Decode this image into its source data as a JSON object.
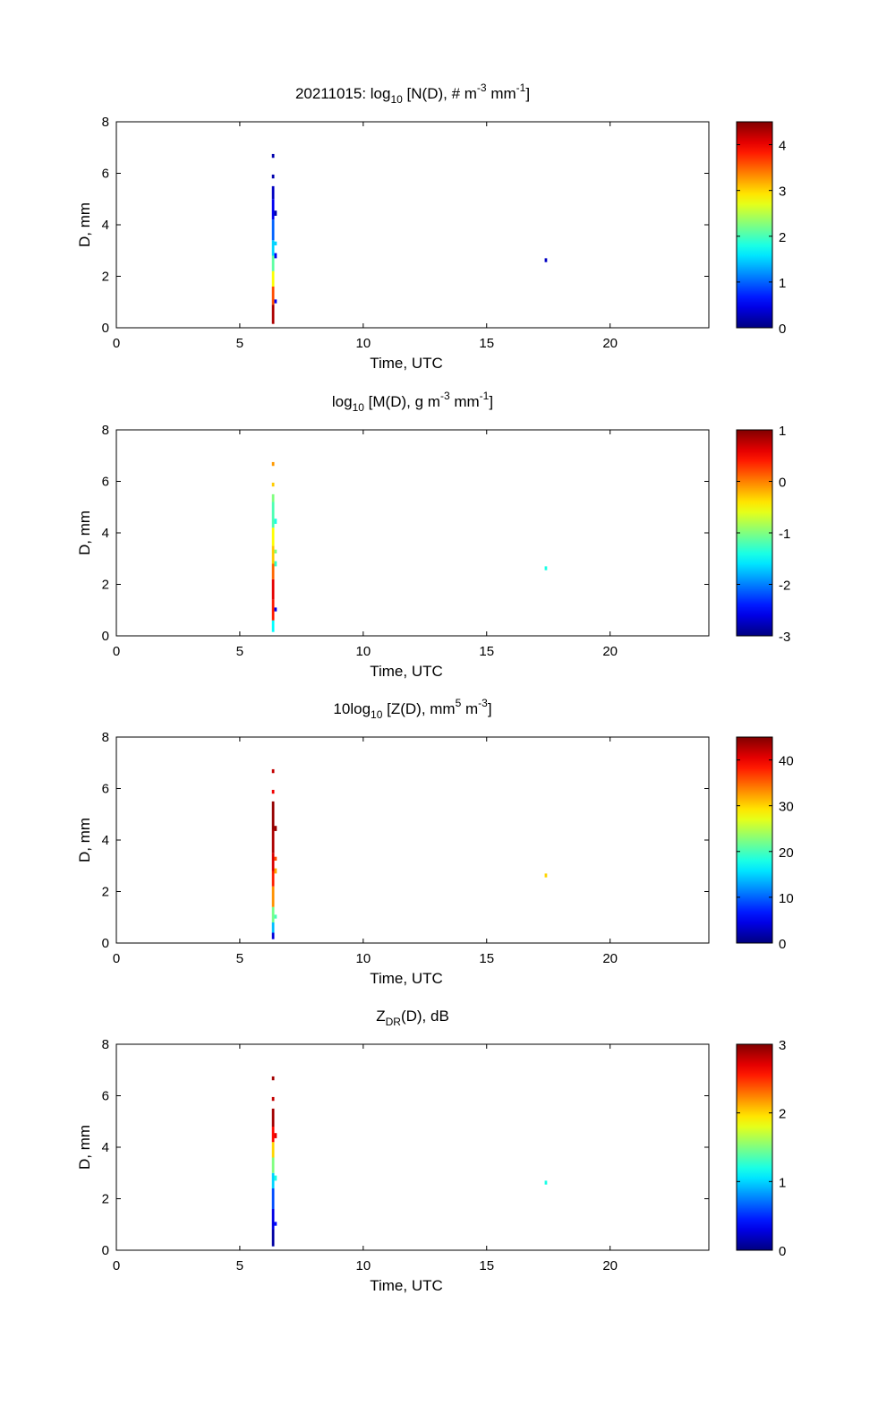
{
  "chart_data": [
    {
      "type": "heatmap",
      "title_parts": [
        "20211015: log",
        "10",
        " [N(D), # m",
        "-3",
        " mm",
        "-1",
        "]"
      ],
      "xlabel": "Time, UTC",
      "ylabel": "D, mm",
      "xlim": [
        0,
        24
      ],
      "ylim": [
        0,
        8
      ],
      "xticks": [
        0,
        5,
        10,
        15,
        20
      ],
      "yticks": [
        0,
        2,
        4,
        6,
        8
      ],
      "grid": false,
      "colorbar": {
        "colormap": "jet",
        "clim": [
          0,
          4.5
        ],
        "ticks": [
          0,
          1,
          2,
          3,
          4
        ]
      },
      "cells": [
        {
          "t": 6.35,
          "d0": 0.15,
          "d1": 0.9,
          "v": 4.3
        },
        {
          "t": 6.35,
          "d0": 0.9,
          "d1": 1.6,
          "v": 3.6
        },
        {
          "t": 6.35,
          "d0": 1.6,
          "d1": 2.2,
          "v": 2.8
        },
        {
          "t": 6.35,
          "d0": 2.2,
          "d1": 2.8,
          "v": 2.1
        },
        {
          "t": 6.35,
          "d0": 2.8,
          "d1": 3.4,
          "v": 1.5
        },
        {
          "t": 6.35,
          "d0": 3.4,
          "d1": 4.2,
          "v": 1.0
        },
        {
          "t": 6.35,
          "d0": 4.2,
          "d1": 5.0,
          "v": 0.5
        },
        {
          "t": 6.35,
          "d0": 5.0,
          "d1": 5.5,
          "v": 0.3
        },
        {
          "t": 6.35,
          "d0": 5.8,
          "d1": 5.95,
          "v": 0.2
        },
        {
          "t": 6.35,
          "d0": 6.6,
          "d1": 6.75,
          "v": 0.2
        },
        {
          "t": 6.45,
          "d0": 0.95,
          "d1": 1.1,
          "v": 0.5
        },
        {
          "t": 6.45,
          "d0": 2.7,
          "d1": 2.9,
          "v": 0.5
        },
        {
          "t": 6.45,
          "d0": 3.2,
          "d1": 3.35,
          "v": 1.5
        },
        {
          "t": 6.45,
          "d0": 4.35,
          "d1": 4.55,
          "v": 0.2
        },
        {
          "t": 17.4,
          "d0": 2.55,
          "d1": 2.7,
          "v": 0.3
        }
      ]
    },
    {
      "type": "heatmap",
      "title_parts": [
        "log",
        "10",
        " [M(D), g m",
        "-3",
        " mm",
        "-1",
        "]"
      ],
      "xlabel": "Time, UTC",
      "ylabel": "D, mm",
      "xlim": [
        0,
        24
      ],
      "ylim": [
        0,
        8
      ],
      "xticks": [
        0,
        5,
        10,
        15,
        20
      ],
      "yticks": [
        0,
        2,
        4,
        6,
        8
      ],
      "grid": false,
      "colorbar": {
        "colormap": "jet",
        "clim": [
          -3,
          1
        ],
        "ticks": [
          1,
          0,
          -1,
          -2,
          -3
        ]
      },
      "cells": [
        {
          "t": 6.35,
          "d0": 0.15,
          "d1": 0.6,
          "v": -1.5
        },
        {
          "t": 6.35,
          "d0": 0.6,
          "d1": 1.4,
          "v": 0.4
        },
        {
          "t": 6.35,
          "d0": 1.4,
          "d1": 2.2,
          "v": 0.6
        },
        {
          "t": 6.35,
          "d0": 2.2,
          "d1": 2.8,
          "v": 0.1
        },
        {
          "t": 6.35,
          "d0": 2.8,
          "d1": 3.5,
          "v": -0.3
        },
        {
          "t": 6.35,
          "d0": 3.5,
          "d1": 4.2,
          "v": -0.5
        },
        {
          "t": 6.35,
          "d0": 4.2,
          "d1": 5.2,
          "v": -1.2
        },
        {
          "t": 6.35,
          "d0": 5.2,
          "d1": 5.5,
          "v": -1.0
        },
        {
          "t": 6.35,
          "d0": 5.8,
          "d1": 5.95,
          "v": -0.3
        },
        {
          "t": 6.35,
          "d0": 6.6,
          "d1": 6.75,
          "v": -0.1
        },
        {
          "t": 6.45,
          "d0": 0.95,
          "d1": 1.1,
          "v": -2.6
        },
        {
          "t": 6.45,
          "d0": 2.7,
          "d1": 2.9,
          "v": -1.3
        },
        {
          "t": 6.45,
          "d0": 3.2,
          "d1": 3.35,
          "v": -1.0
        },
        {
          "t": 6.45,
          "d0": 4.35,
          "d1": 4.55,
          "v": -1.4
        },
        {
          "t": 17.4,
          "d0": 2.55,
          "d1": 2.7,
          "v": -1.4
        }
      ]
    },
    {
      "type": "heatmap",
      "title_parts": [
        "10log",
        "10",
        " [Z(D),  mm",
        "5",
        " m",
        "-3",
        "]"
      ],
      "xlabel": "Time, UTC",
      "ylabel": "D, mm",
      "xlim": [
        0,
        24
      ],
      "ylim": [
        0,
        8
      ],
      "xticks": [
        0,
        5,
        10,
        15,
        20
      ],
      "yticks": [
        0,
        2,
        4,
        6,
        8
      ],
      "grid": false,
      "colorbar": {
        "colormap": "jet",
        "clim": [
          0,
          45
        ],
        "ticks": [
          0,
          10,
          20,
          30,
          40
        ]
      },
      "cells": [
        {
          "t": 6.35,
          "d0": 0.15,
          "d1": 0.4,
          "v": 4
        },
        {
          "t": 6.35,
          "d0": 0.4,
          "d1": 0.8,
          "v": 14
        },
        {
          "t": 6.35,
          "d0": 0.8,
          "d1": 1.4,
          "v": 22
        },
        {
          "t": 6.35,
          "d0": 1.4,
          "d1": 2.2,
          "v": 33
        },
        {
          "t": 6.35,
          "d0": 2.2,
          "d1": 2.8,
          "v": 38
        },
        {
          "t": 6.35,
          "d0": 2.8,
          "d1": 3.5,
          "v": 41
        },
        {
          "t": 6.35,
          "d0": 3.5,
          "d1": 4.4,
          "v": 43
        },
        {
          "t": 6.35,
          "d0": 4.4,
          "d1": 5.5,
          "v": 44
        },
        {
          "t": 6.35,
          "d0": 5.8,
          "d1": 5.95,
          "v": 40
        },
        {
          "t": 6.35,
          "d0": 6.6,
          "d1": 6.75,
          "v": 42
        },
        {
          "t": 6.45,
          "d0": 0.95,
          "d1": 1.1,
          "v": 20
        },
        {
          "t": 6.45,
          "d0": 2.7,
          "d1": 2.9,
          "v": 32
        },
        {
          "t": 6.45,
          "d0": 3.2,
          "d1": 3.35,
          "v": 36
        },
        {
          "t": 6.45,
          "d0": 4.35,
          "d1": 4.55,
          "v": 44
        },
        {
          "t": 17.4,
          "d0": 2.55,
          "d1": 2.7,
          "v": 30
        }
      ]
    },
    {
      "type": "heatmap",
      "title_parts": [
        "Z",
        "DR",
        "(D), dB"
      ],
      "xlabel": "Time, UTC",
      "ylabel": "D, mm",
      "xlim": [
        0,
        24
      ],
      "ylim": [
        0,
        8
      ],
      "xticks": [
        0,
        5,
        10,
        15,
        20
      ],
      "yticks": [
        0,
        2,
        4,
        6,
        8
      ],
      "grid": false,
      "colorbar": {
        "colormap": "jet",
        "clim": [
          0,
          3
        ],
        "ticks": [
          0,
          1,
          2,
          3
        ]
      },
      "cells": [
        {
          "t": 6.35,
          "d0": 0.15,
          "d1": 0.8,
          "v": 0.1
        },
        {
          "t": 6.35,
          "d0": 0.8,
          "d1": 1.6,
          "v": 0.3
        },
        {
          "t": 6.35,
          "d0": 1.6,
          "d1": 2.4,
          "v": 0.6
        },
        {
          "t": 6.35,
          "d0": 2.4,
          "d1": 3.0,
          "v": 1.0
        },
        {
          "t": 6.35,
          "d0": 3.0,
          "d1": 3.6,
          "v": 1.5
        },
        {
          "t": 6.35,
          "d0": 3.6,
          "d1": 4.2,
          "v": 2.0
        },
        {
          "t": 6.35,
          "d0": 4.2,
          "d1": 4.8,
          "v": 2.6
        },
        {
          "t": 6.35,
          "d0": 4.8,
          "d1": 5.5,
          "v": 2.9
        },
        {
          "t": 6.35,
          "d0": 5.8,
          "d1": 5.95,
          "v": 2.8
        },
        {
          "t": 6.35,
          "d0": 6.6,
          "d1": 6.75,
          "v": 2.9
        },
        {
          "t": 6.45,
          "d0": 0.95,
          "d1": 1.1,
          "v": 0.4
        },
        {
          "t": 6.45,
          "d0": 2.7,
          "d1": 2.9,
          "v": 1.2
        },
        {
          "t": 6.45,
          "d0": 4.35,
          "d1": 4.55,
          "v": 2.7
        },
        {
          "t": 17.4,
          "d0": 2.55,
          "d1": 2.7,
          "v": 1.2
        }
      ]
    }
  ]
}
